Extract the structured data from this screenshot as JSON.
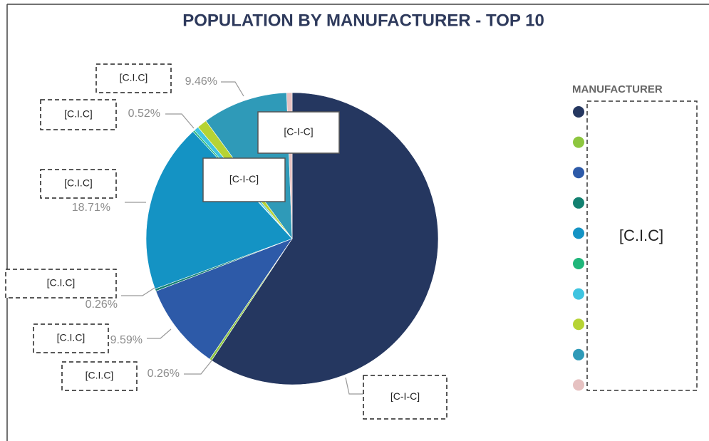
{
  "chart_data": {
    "type": "pie",
    "title": "POPULATION BY MANUFACTURER - TOP 10",
    "legend_title": "MANUFACTURER",
    "legend_label": "[C.I.C]",
    "categories": [
      null,
      null,
      null,
      null,
      null,
      null,
      null,
      null,
      null,
      null
    ],
    "values": [
      59.3,
      0.26,
      9.59,
      0.26,
      18.71,
      0.2,
      0.52,
      1.1,
      9.46,
      0.6
    ],
    "value_labels": [
      null,
      "0.26%",
      "9.59%",
      "0.26%",
      "18.71%",
      null,
      "0.52%",
      null,
      "9.46%",
      null
    ],
    "colors": [
      "#253760",
      "#8dc63f",
      "#2d5aa8",
      "#128070",
      "#1493c4",
      "#20b67a",
      "#3fc4e0",
      "#b6d334",
      "#2f9ab8",
      "#e6c1c1"
    ],
    "annotations": [
      "[C.I.C]",
      "[C.I.C]",
      "[C.I.C]",
      "[C.I.C]",
      "[C.I.C]",
      "[C.I.C]",
      "[C-I-C]",
      "[C-I-C]",
      "[C-I-C]"
    ]
  }
}
